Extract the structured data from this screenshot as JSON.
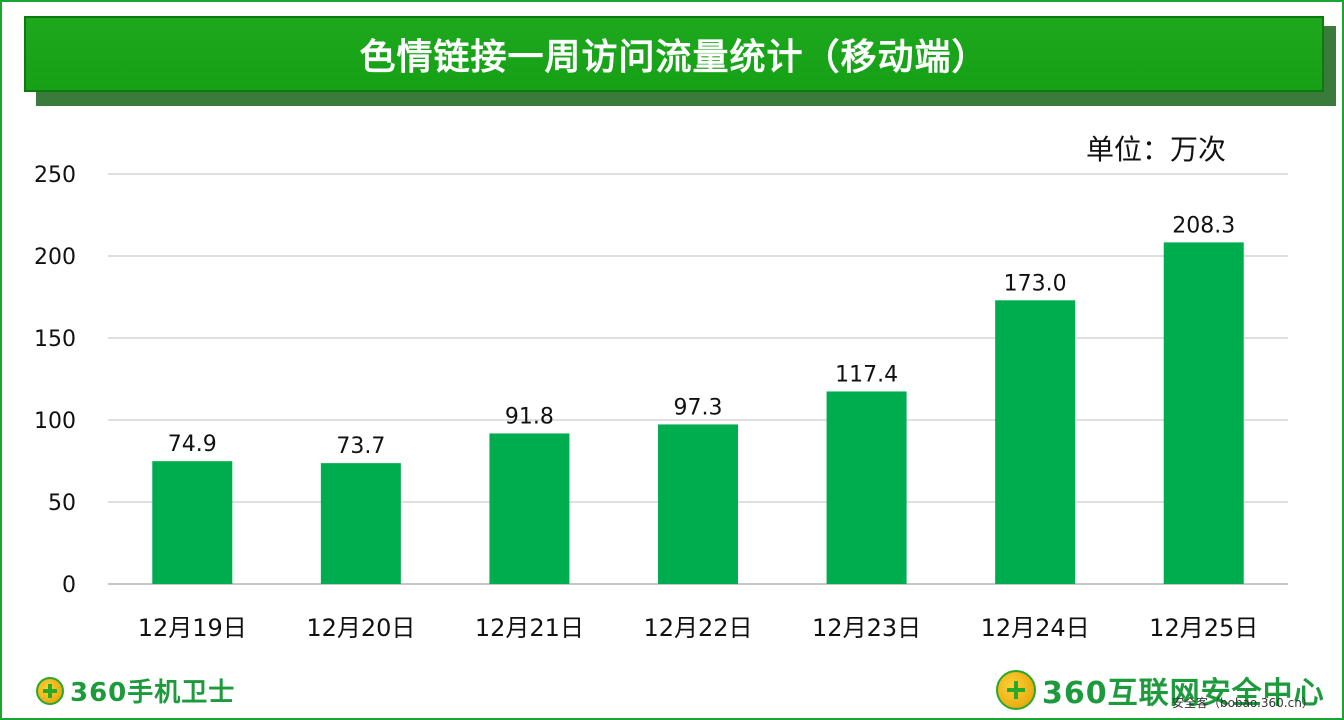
{
  "title": "色情链接一周访问流量统计（移动端）",
  "unit_label": "单位：万次",
  "footer": {
    "left_brand": "360手机卫士",
    "right_brand": "360互联网安全中心",
    "site": "安全客（bobao.360.cn）"
  },
  "colors": {
    "bar": "#00ad4e",
    "banner": "#18a418",
    "grid": "#bfbfbf"
  },
  "chart_data": {
    "type": "bar",
    "title": "色情链接一周访问流量统计（移动端）",
    "ylabel": "单位：万次",
    "categories": [
      "12月19日",
      "12月20日",
      "12月21日",
      "12月22日",
      "12月23日",
      "12月24日",
      "12月25日"
    ],
    "values": [
      74.9,
      73.7,
      91.8,
      97.3,
      117.4,
      173.0,
      208.3
    ],
    "data_labels": [
      "74.9",
      "73.7",
      "91.8",
      "97.3",
      "117.4",
      "173.0",
      "208.3"
    ],
    "ylim": [
      0,
      250
    ],
    "yticks": [
      "0",
      "50",
      "100",
      "150",
      "200",
      "250"
    ],
    "grid": true
  }
}
